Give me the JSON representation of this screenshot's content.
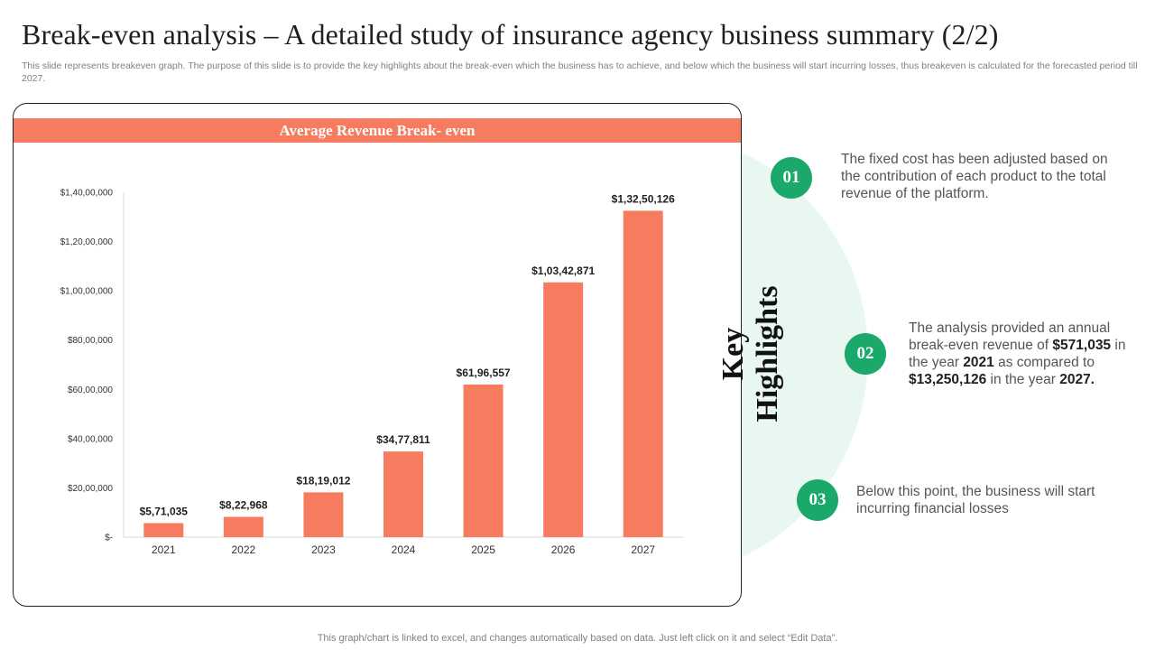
{
  "slide": {
    "title": "Break-even analysis – A detailed study of insurance agency business summary (2/2)",
    "subtitle": "This slide represents breakeven graph. The purpose of this slide is to provide the key highlights about the break-even which the business has to achieve, and below which the business will start incurring losses, thus breakeven is calculated for the forecasted period till 2027.",
    "footer": "This graph/chart is linked to excel,  and changes automatically based on data. Just left click on it and select “Edit Data”."
  },
  "chart_data": {
    "type": "bar",
    "title": "Average Revenue Break- even",
    "categories": [
      "2021",
      "2022",
      "2023",
      "2024",
      "2025",
      "2026",
      "2027"
    ],
    "values": [
      571035,
      822968,
      1819012,
      3477811,
      6196557,
      10342871,
      13250126
    ],
    "data_labels": [
      "$5,71,035",
      "$8,22,968",
      "$18,19,012",
      "$34,77,811",
      "$61,96,557",
      "$1,03,42,871",
      "$1,32,50,126"
    ],
    "yticks": [
      0,
      2000000,
      4000000,
      6000000,
      8000000,
      10000000,
      12000000,
      14000000
    ],
    "ytick_labels": [
      "$-",
      "$20,00,000",
      "$40,00,000",
      "$60,00,000",
      "$80,00,000",
      "$1,00,00,000",
      "$1,20,00,000",
      "$1,40,00,000"
    ],
    "ylim": [
      0,
      14000000
    ],
    "grid": false,
    "legend": "none",
    "bar_color": "#f77b5f"
  },
  "highlights": {
    "heading_line1": "Key",
    "heading_line2": "Highlights",
    "accent_color": "#1aa86b",
    "items": [
      {
        "number": "01",
        "text": "The fixed cost has been adjusted based on the contribution of each product to the total revenue of the platform."
      },
      {
        "number": "02",
        "p1": "The analysis provided an annual break-even revenue of ",
        "b1": "$571,035",
        "p2": " in the year ",
        "b2": "2021",
        "p3": " as compared to ",
        "b3": "$13,250,126",
        "p4": " in the year ",
        "b4": "2027."
      },
      {
        "number": "03",
        "text": "Below this point, the business will start incurring financial losses"
      }
    ]
  }
}
